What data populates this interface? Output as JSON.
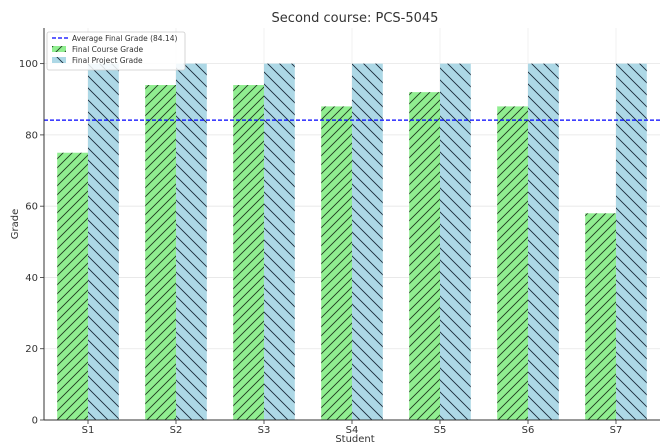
{
  "chart_data": {
    "type": "bar",
    "title": "Second course: PCS-5045",
    "xlabel": "Student",
    "ylabel": "Grade",
    "ylim": [
      0,
      110
    ],
    "yticks": [
      0,
      20,
      40,
      60,
      80,
      100
    ],
    "grid": true,
    "legend_position": "top-left",
    "categories": [
      "S1",
      "S2",
      "S3",
      "S4",
      "S5",
      "S6",
      "S7"
    ],
    "series": [
      {
        "name": "Final Course Grade",
        "values": [
          75,
          94,
          94,
          88,
          92,
          88,
          58
        ],
        "color": "#90ee90",
        "hatch": "//"
      },
      {
        "name": "Final Project Grade",
        "values": [
          100,
          100,
          100,
          100,
          100,
          100,
          100
        ],
        "color": "#add8e6",
        "hatch": "\\\\"
      }
    ],
    "reference_line": {
      "label": "Average Final Grade (84.14)",
      "value": 84.14,
      "color": "#0000ff",
      "style": "dashed"
    }
  }
}
